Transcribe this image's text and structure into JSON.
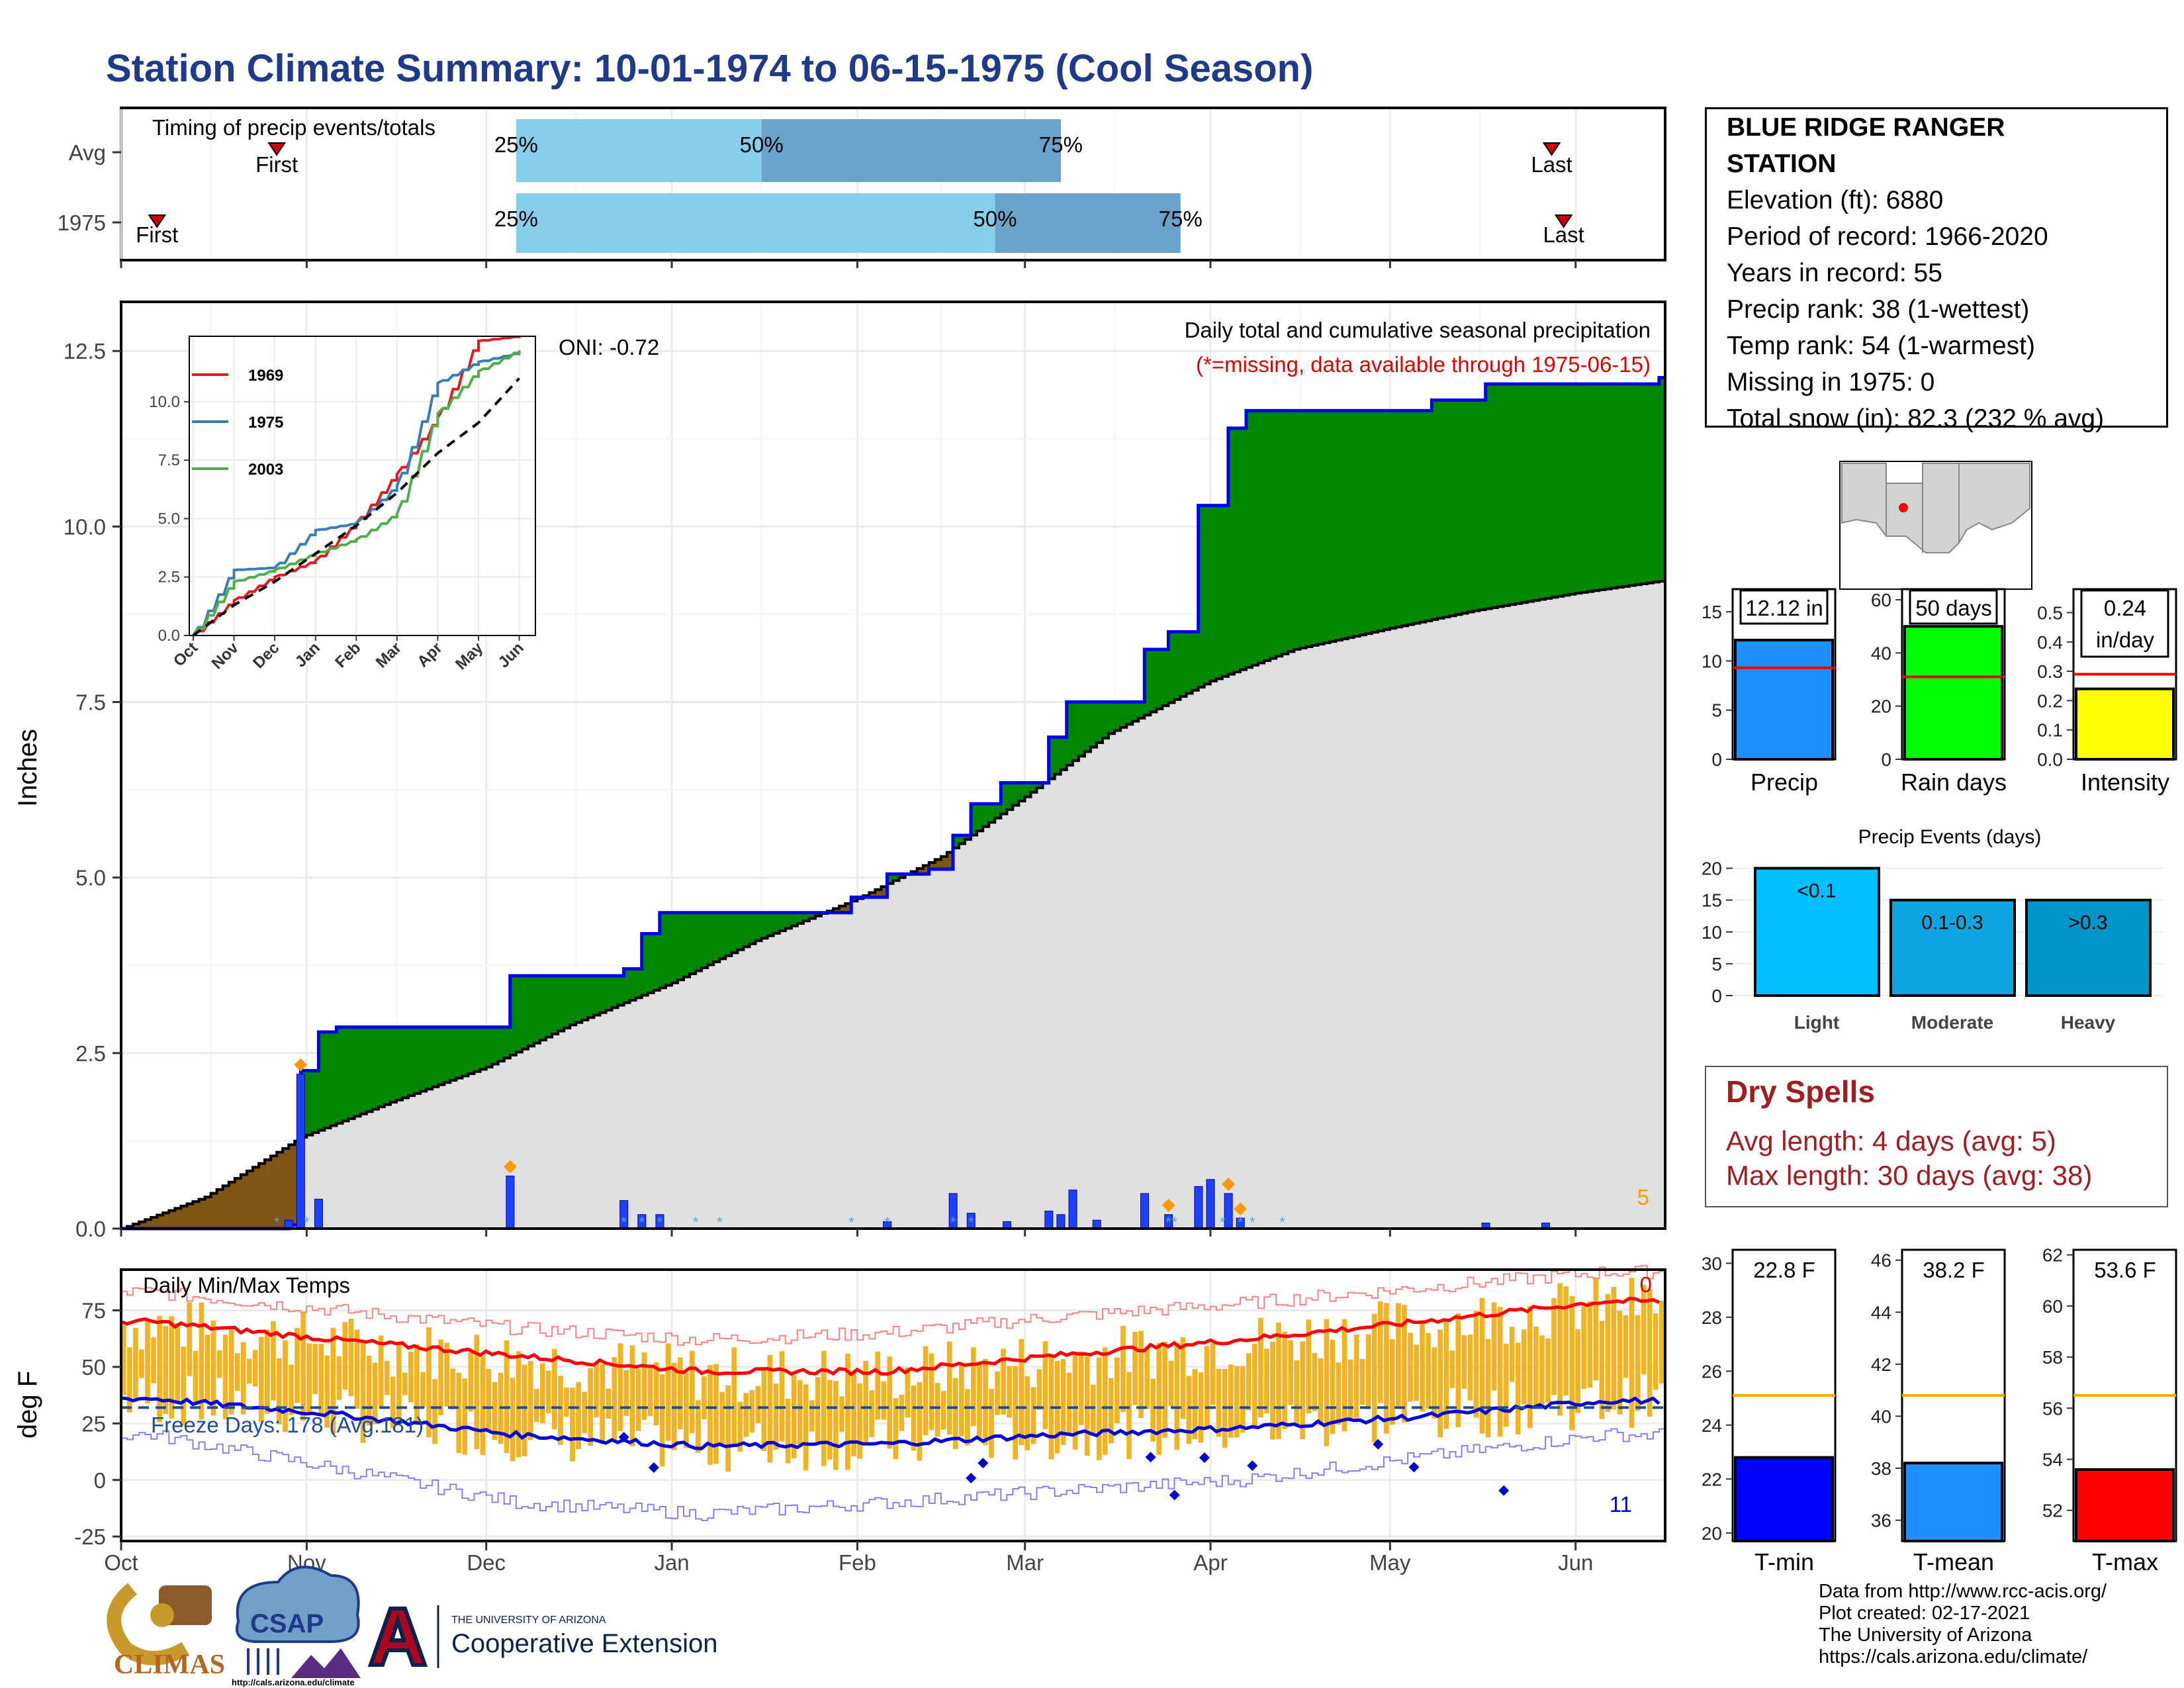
{
  "title": "Station Climate Summary: 10-01-1974 to 06-15-1975 (Cool Season)",
  "timing": {
    "title": "Timing of precip events/totals",
    "rows": [
      {
        "label": "Avg",
        "first_date": "1974-10-27",
        "last_date": "1975-05-28",
        "p25": "1974-12-06",
        "p50": "1975-01-16",
        "p75": "1975-03-07"
      },
      {
        "label": "1975",
        "first_date": "1974-10-07",
        "last_date": "1975-05-30",
        "p25": "1974-12-06",
        "p50": "1975-02-24",
        "p75": "1975-03-27"
      }
    ],
    "first_label": "First",
    "last_label": "Last",
    "pct_labels": [
      "25%",
      "50%",
      "75%"
    ],
    "colors": {
      "light": "#87ceeb",
      "dark": "#6ba2ca",
      "marker": "#cc0000"
    }
  },
  "precip_panel": {
    "ylabel": "Inches",
    "caption": "Daily total and cumulative seasonal precipitation",
    "missing_note": "(*=missing, data available through 1975-06-15)",
    "oni": "ONI: -0.72",
    "corner_count": "5",
    "yticks": [
      "0.0",
      "2.5",
      "5.0",
      "7.5",
      "10.0",
      "12.5"
    ]
  },
  "inset": {
    "legend": [
      "1969",
      "1975",
      "2003"
    ],
    "colors": [
      "#e31a1c",
      "#377eb8",
      "#4daf4a"
    ],
    "yticks": [
      "0.0",
      "2.5",
      "5.0",
      "7.5",
      "10.0"
    ],
    "xticks": [
      "Oct",
      "Nov",
      "Dec",
      "Jan",
      "Feb",
      "Mar",
      "Apr",
      "May",
      "Jun"
    ]
  },
  "temp_panel": {
    "ylabel": "deg F",
    "title": "Daily Min/Max Temps",
    "freeze_label": "Freeze Days: 178 (Avg:181)",
    "hot_count": "0",
    "cold_count": "11",
    "yticks": [
      "-25",
      "0",
      "25",
      "50",
      "75"
    ]
  },
  "x_months": [
    "Oct",
    "Nov",
    "Dec",
    "Jan",
    "Feb",
    "Mar",
    "Apr",
    "May",
    "Jun"
  ],
  "station": {
    "name_line1": "BLUE RIDGE RANGER",
    "name_line2": "STATION",
    "lines": [
      "Elevation (ft): 6880",
      "Period of record: 1966-2020",
      "Years in record: 55",
      "Precip rank: 38 (1-wettest)",
      "Temp rank: 54 (1-warmest)",
      "Missing in 1975: 0",
      "Total snow (in): 82.3 (232 % avg)"
    ]
  },
  "summary_bars": [
    {
      "label": "Precip",
      "value_text": "12.12 in",
      "color": "#1e90ff"
    },
    {
      "label": "Rain days",
      "value_text": "50 days",
      "color": "#00ff00"
    },
    {
      "label": "Intensity",
      "value_text": "0.24",
      "value_text2": "in/day",
      "color": "#ffff00"
    }
  ],
  "events": {
    "title": "Precip Events (days)",
    "categories": [
      "Light",
      "Moderate",
      "Heavy"
    ],
    "labels": [
      "<0.1",
      "0.1-0.3",
      ">0.3"
    ],
    "values": [
      20,
      15,
      15
    ],
    "colors": [
      "#00bfff",
      "#0ea5e0",
      "#0095c8"
    ]
  },
  "dry_spells": {
    "title": "Dry Spells",
    "avg": "Avg length: 4 days (avg: 5)",
    "max": "Max length: 30 days (avg: 38)"
  },
  "temp_bars": [
    {
      "label": "T-min",
      "value_text": "22.8 F",
      "color": "#0000ff"
    },
    {
      "label": "T-mean",
      "value_text": "38.2 F",
      "color": "#1e90ff"
    },
    {
      "label": "T-max",
      "value_text": "53.6 F",
      "color": "#ff0000"
    }
  ],
  "credits": [
    "Data from http://www.rcc-acis.org/",
    "Plot created: 02-17-2021",
    "The University of Arizona",
    "https://cals.arizona.edu/climate/"
  ],
  "logos": {
    "climas": "CLIMAS",
    "csap": "CSAP",
    "csap_url": "http://cals.arizona.edu/climate",
    "ua_small": "THE UNIVERSITY OF ARIZONA",
    "ua_big": "Cooperative Extension"
  },
  "chart_data": [
    {
      "type": "area",
      "title": "Daily total and cumulative seasonal precipitation",
      "xlabel": "",
      "ylabel": "Inches",
      "x_range": [
        "1974-10-01",
        "1975-06-15"
      ],
      "ylim": [
        0,
        13.2
      ],
      "series": [
        {
          "name": "1975",
          "kind": "cumulative_observed",
          "x": [
            "1974-10-01",
            "1974-10-29",
            "1974-10-31",
            "1974-11-03",
            "1974-11-06",
            "1974-12-04",
            "1974-12-05",
            "1974-12-24",
            "1974-12-27",
            "1974-12-30",
            "1975-01-31",
            "1975-02-06",
            "1975-02-13",
            "1975-02-17",
            "1975-02-20",
            "1975-02-25",
            "1975-03-05",
            "1975-03-08",
            "1975-03-21",
            "1975-03-25",
            "1975-03-30",
            "1975-04-04",
            "1975-04-07",
            "1975-05-08",
            "1975-05-17",
            "1975-06-15"
          ],
          "y": [
            0,
            0.05,
            2.25,
            2.8,
            2.87,
            2.87,
            3.6,
            3.7,
            4.2,
            4.5,
            4.72,
            5.05,
            5.12,
            5.6,
            6.05,
            6.35,
            7.0,
            7.5,
            8.25,
            8.5,
            10.3,
            11.4,
            11.65,
            11.8,
            12.03,
            12.12
          ]
        },
        {
          "name": "Avg",
          "kind": "cumulative_average",
          "x": [
            "1974-10-01",
            "1974-10-15",
            "1974-10-31",
            "1974-11-15",
            "1974-12-01",
            "1974-12-15",
            "1975-01-01",
            "1975-01-15",
            "1975-02-01",
            "1975-02-15",
            "1975-03-01",
            "1975-03-15",
            "1975-04-01",
            "1975-04-15",
            "1975-05-01",
            "1975-05-15",
            "1975-06-01",
            "1975-06-15"
          ],
          "y": [
            0,
            0.45,
            1.3,
            1.8,
            2.3,
            2.9,
            3.5,
            4.1,
            4.7,
            5.3,
            6.15,
            7.05,
            7.8,
            8.25,
            8.55,
            8.8,
            9.05,
            9.22
          ]
        }
      ],
      "daily_bars": {
        "x": [
          "1974-10-29",
          "1974-10-31",
          "1974-11-03",
          "1974-12-05",
          "1974-12-24",
          "1974-12-27",
          "1974-12-30",
          "1975-02-06",
          "1975-02-17",
          "1975-02-20",
          "1975-02-26",
          "1975-03-05",
          "1975-03-07",
          "1975-03-09",
          "1975-03-13",
          "1975-03-21",
          "1975-03-25",
          "1975-03-30",
          "1975-04-01",
          "1975-04-04",
          "1975-04-06",
          "1975-05-17",
          "1975-05-27"
        ],
        "y": [
          0.12,
          2.2,
          0.42,
          0.75,
          0.4,
          0.2,
          0.2,
          0.1,
          0.5,
          0.22,
          0.1,
          0.25,
          0.2,
          0.55,
          0.12,
          0.5,
          0.2,
          0.6,
          0.7,
          0.5,
          0.15,
          0.08,
          0.08
        ]
      },
      "snow_day_markers": [
        "1974-10-31",
        "1974-12-05",
        "1975-03-25",
        "1975-04-04",
        "1975-04-06"
      ]
    },
    {
      "type": "line",
      "title": "",
      "xticks": [
        "Oct",
        "Nov",
        "Dec",
        "Jan",
        "Feb",
        "Mar",
        "Apr",
        "May",
        "Jun"
      ],
      "ylim": [
        0,
        12.8
      ],
      "series": [
        {
          "name": "1969",
          "x": [
            "Oct",
            "Nov",
            "Dec",
            "Jan",
            "Feb",
            "Mar",
            "Apr",
            "May",
            "Jun"
          ],
          "y": [
            0,
            1.5,
            2.5,
            3.2,
            4.8,
            6.9,
            9.3,
            12.6,
            12.8
          ]
        },
        {
          "name": "1975",
          "x": [
            "Oct",
            "Nov",
            "Dec",
            "Jan",
            "Feb",
            "Mar",
            "Apr",
            "May",
            "Jun"
          ],
          "y": [
            0,
            2.8,
            2.9,
            4.5,
            4.8,
            6.4,
            10.8,
            11.7,
            12.1
          ]
        },
        {
          "name": "2003",
          "x": [
            "Oct",
            "Nov",
            "Dec",
            "Jan",
            "Feb",
            "Mar",
            "Apr",
            "May",
            "Jun"
          ],
          "y": [
            0,
            2.3,
            2.8,
            3.5,
            4.1,
            5.2,
            9.5,
            11.3,
            12.2
          ]
        },
        {
          "name": "Avg",
          "x": [
            "Oct",
            "Nov",
            "Dec",
            "Jan",
            "Feb",
            "Mar",
            "Apr",
            "May",
            "Jun"
          ],
          "y": [
            0,
            1.3,
            2.3,
            3.5,
            4.7,
            6.1,
            7.8,
            9.1,
            11.0
          ]
        }
      ]
    },
    {
      "type": "line",
      "title": "Daily Min/Max Temps",
      "ylabel": "deg F",
      "ylim": [
        -27,
        93
      ],
      "x": [
        "Oct",
        "Nov",
        "Dec",
        "Jan",
        "Feb",
        "Mar",
        "Apr",
        "May",
        "Jun"
      ],
      "series": [
        {
          "name": "Avg max",
          "values": [
            70,
            62,
            55,
            48,
            48,
            55,
            62,
            70,
            79
          ]
        },
        {
          "name": "Avg min",
          "values": [
            36,
            29,
            20,
            15,
            16,
            20,
            23,
            28,
            35
          ]
        },
        {
          "name": "Record max",
          "values": [
            83,
            75,
            67,
            62,
            65,
            72,
            78,
            85,
            92
          ]
        },
        {
          "name": "Record min",
          "values": [
            20,
            5,
            -10,
            -15,
            -10,
            -5,
            0,
            10,
            20
          ]
        }
      ],
      "freeze_threshold": 32,
      "freeze_days": 178,
      "freeze_days_avg": 181
    },
    {
      "type": "bar",
      "categories": [
        "Precip",
        "Rain days",
        "Intensity"
      ],
      "values": [
        12.12,
        50,
        0.24
      ],
      "averages": [
        9.3,
        31,
        0.29
      ],
      "ylims": [
        [
          0,
          17.3
        ],
        [
          0,
          64
        ],
        [
          0,
          0.58
        ]
      ]
    },
    {
      "type": "bar",
      "title": "Precip Events (days)",
      "categories": [
        "Light",
        "Moderate",
        "Heavy"
      ],
      "values": [
        20,
        15,
        15
      ],
      "ylim": [
        0,
        21
      ]
    },
    {
      "type": "bar",
      "categories": [
        "T-min",
        "T-mean",
        "T-max"
      ],
      "values": [
        22.8,
        38.2,
        53.6
      ],
      "averages": [
        25.1,
        40.8,
        56.5
      ],
      "ylims": [
        [
          19.7,
          30.5
        ],
        [
          35.2,
          46.4
        ],
        [
          50.8,
          62.2
        ]
      ]
    }
  ]
}
